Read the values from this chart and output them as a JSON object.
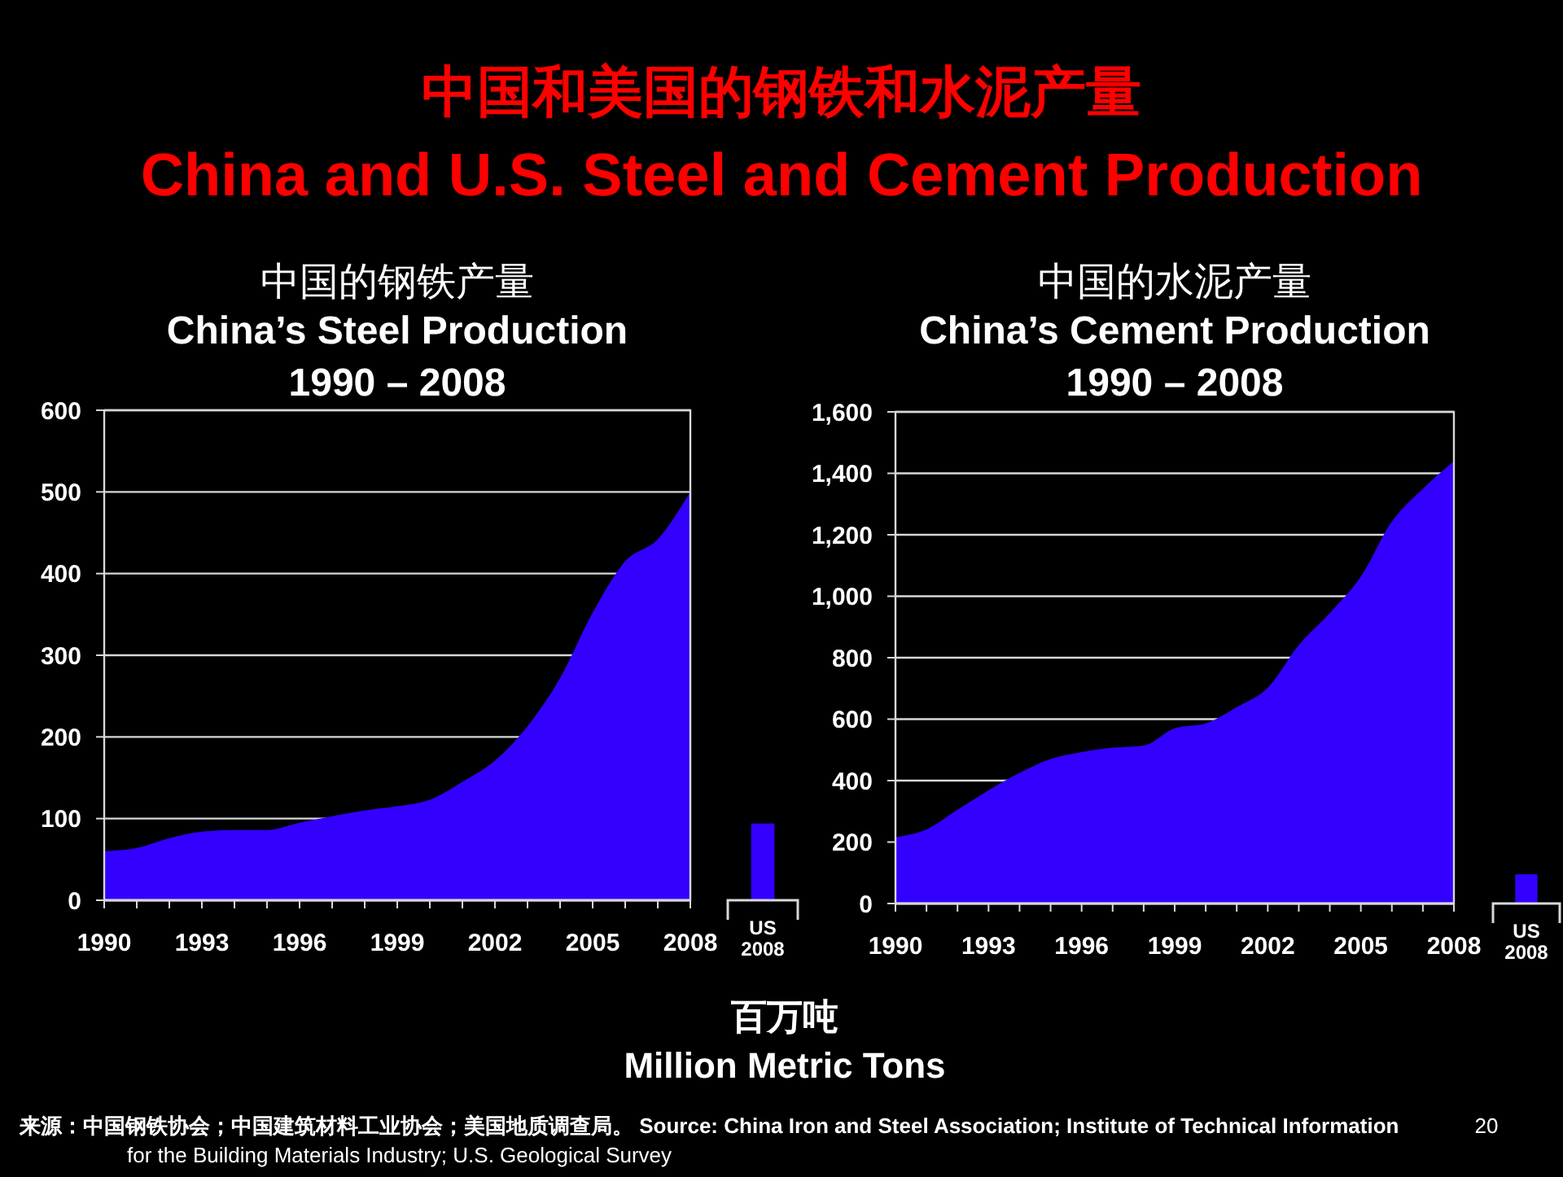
{
  "chart_data": [
    {
      "type": "area",
      "title": "中国的钢铁产量",
      "subtitle": "China’s Steel Production\n1990 – 2008",
      "color": "#3300ff",
      "grid": "y",
      "x": [
        1990,
        1991,
        1992,
        1993,
        1994,
        1995,
        1996,
        1997,
        1998,
        1999,
        2000,
        2001,
        2002,
        2003,
        2004,
        2005,
        2006,
        2007,
        2008
      ],
      "values": [
        60,
        64,
        76,
        84,
        86,
        86,
        95,
        103,
        110,
        115,
        123,
        145,
        171,
        213,
        272,
        352,
        415,
        442,
        500
      ],
      "xlim": [
        1990,
        2008
      ],
      "xticks": [
        1990,
        {
          "value": 1991,
          "label": null
        },
        {
          "value": 1992,
          "label": null
        },
        1993,
        {
          "value": 1994,
          "label": null
        },
        {
          "value": 1995,
          "label": null
        },
        1996,
        {
          "value": 1997,
          "label": null
        },
        {
          "value": 1998,
          "label": null
        },
        1999,
        {
          "value": 2000,
          "label": null
        },
        {
          "value": 2001,
          "label": null
        },
        2002,
        {
          "value": 2003,
          "label": null
        },
        {
          "value": 2004,
          "label": null
        },
        2005,
        {
          "value": 2006,
          "label": null
        },
        {
          "value": 2007,
          "label": null
        },
        2008
      ],
      "ylim": [
        0,
        600
      ],
      "yticks": [
        0,
        100,
        200,
        300,
        400,
        500,
        600
      ],
      "annotations": [
        "中国和美国的钢铁和水泥产量",
        "China and U.S. Steel and Cement Production",
        "百万吨",
        "Million Metric Tons",
        "来源：中国钢铁协会；中国建筑材料工业协会；美国地质调查局。 Source: China Iron and Steel Association; Institute of Technical Information for the Building Materials Industry; U.S. Geological Survey",
        "20"
      ]
    },
    {
      "type": "bar",
      "categories": [
        "US 2008"
      ],
      "values": [
        94
      ],
      "color": "#3300ff",
      "ylim": [
        0,
        600
      ],
      "tick_labels": "x"
    },
    {
      "type": "area",
      "title": "中国的水泥产量",
      "subtitle": "China’s Cement Production\n1990 – 2008",
      "color": "#3300ff",
      "grid": "y",
      "x": [
        1990,
        1991,
        1992,
        1993,
        1994,
        1995,
        1996,
        1997,
        1998,
        1999,
        2000,
        2001,
        2002,
        2003,
        2004,
        2005,
        2006,
        2007,
        2008
      ],
      "values": [
        216,
        241,
        305,
        368,
        425,
        470,
        493,
        507,
        514,
        570,
        586,
        639,
        702,
        841,
        945,
        1064,
        1243,
        1350,
        1440
      ],
      "xlim": [
        1990,
        2008
      ],
      "xticks": [
        1990,
        {
          "value": 1991,
          "label": null
        },
        {
          "value": 1992,
          "label": null
        },
        1993,
        {
          "value": 1994,
          "label": null
        },
        {
          "value": 1995,
          "label": null
        },
        1996,
        {
          "value": 1997,
          "label": null
        },
        {
          "value": 1998,
          "label": null
        },
        1999,
        {
          "value": 2000,
          "label": null
        },
        {
          "value": 2001,
          "label": null
        },
        2002,
        {
          "value": 2003,
          "label": null
        },
        {
          "value": 2004,
          "label": null
        },
        2005,
        {
          "value": 2006,
          "label": null
        },
        {
          "value": 2007,
          "label": null
        },
        2008
      ],
      "ylim": [
        0,
        1600
      ],
      "yticks": [
        0,
        200,
        400,
        600,
        800,
        {
          "value": 1000,
          "label": "1,000"
        },
        {
          "value": 1200,
          "label": "1,200"
        },
        {
          "value": 1400,
          "label": "1,400"
        },
        {
          "value": 1600,
          "label": "1,600"
        }
      ]
    },
    {
      "type": "bar",
      "categories": [
        "US 2008"
      ],
      "values": [
        95
      ],
      "color": "#3300ff",
      "ylim": [
        0,
        1600
      ],
      "tick_labels": "x"
    }
  ]
}
